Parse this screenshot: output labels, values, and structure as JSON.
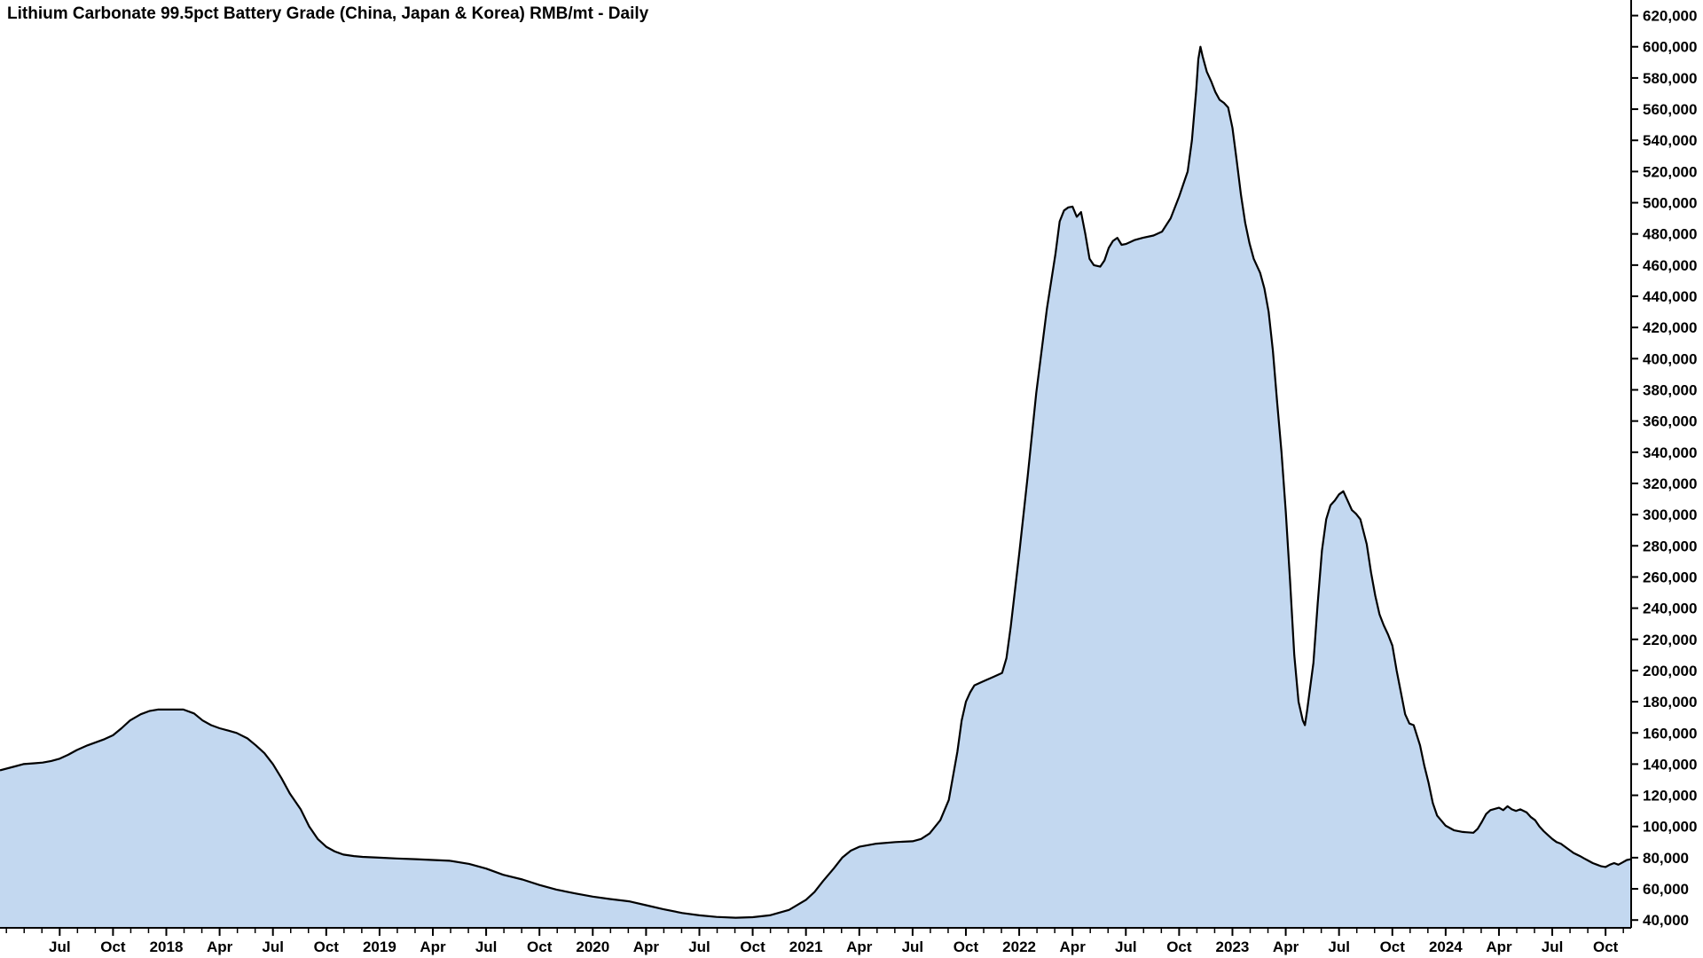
{
  "title": "Lithium Carbonate 99.5pct Battery Grade (China, Japan & Korea) RMB/mt - Daily",
  "chart_data": {
    "type": "area",
    "title": "Lithium Carbonate 99.5pct Battery Grade (China, Japan & Korea) RMB/mt - Daily",
    "xlabel": "",
    "ylabel": "",
    "unit": "RMB/mt",
    "frequency": "Daily",
    "grid": false,
    "legend_position": "none",
    "y_axis_side": "right",
    "x_domain": [
      2017.22,
      2024.87
    ],
    "y_domain": [
      35000,
      630000
    ],
    "y_ticks": [
      40000,
      60000,
      80000,
      100000,
      120000,
      140000,
      160000,
      180000,
      200000,
      220000,
      240000,
      260000,
      280000,
      300000,
      320000,
      340000,
      360000,
      380000,
      400000,
      420000,
      440000,
      460000,
      480000,
      500000,
      520000,
      540000,
      560000,
      580000,
      600000,
      620000
    ],
    "x_ticks": [
      {
        "t": 2017.5,
        "label": "Jul"
      },
      {
        "t": 2017.75,
        "label": "Oct"
      },
      {
        "t": 2018,
        "label": "2018"
      },
      {
        "t": 2018.25,
        "label": "Apr"
      },
      {
        "t": 2018.5,
        "label": "Jul"
      },
      {
        "t": 2018.75,
        "label": "Oct"
      },
      {
        "t": 2019,
        "label": "2019"
      },
      {
        "t": 2019.25,
        "label": "Apr"
      },
      {
        "t": 2019.5,
        "label": "Jul"
      },
      {
        "t": 2019.75,
        "label": "Oct"
      },
      {
        "t": 2020,
        "label": "2020"
      },
      {
        "t": 2020.25,
        "label": "Apr"
      },
      {
        "t": 2020.5,
        "label": "Jul"
      },
      {
        "t": 2020.75,
        "label": "Oct"
      },
      {
        "t": 2021,
        "label": "2021"
      },
      {
        "t": 2021.25,
        "label": "Apr"
      },
      {
        "t": 2021.5,
        "label": "Jul"
      },
      {
        "t": 2021.75,
        "label": "Oct"
      },
      {
        "t": 2022,
        "label": "2022"
      },
      {
        "t": 2022.25,
        "label": "Apr"
      },
      {
        "t": 2022.5,
        "label": "Jul"
      },
      {
        "t": 2022.75,
        "label": "Oct"
      },
      {
        "t": 2023,
        "label": "2023"
      },
      {
        "t": 2023.25,
        "label": "Apr"
      },
      {
        "t": 2023.5,
        "label": "Jul"
      },
      {
        "t": 2023.75,
        "label": "Oct"
      },
      {
        "t": 2024,
        "label": "2024"
      },
      {
        "t": 2024.25,
        "label": "Apr"
      },
      {
        "t": 2024.5,
        "label": "Jul"
      },
      {
        "t": 2024.75,
        "label": "Oct"
      }
    ],
    "colors": {
      "area_fill": "#c3d8f0",
      "line": "#000000",
      "axis": "#000000",
      "text": "#000000",
      "background": "#ffffff"
    },
    "series": [
      {
        "name": "Lithium Carbonate 99.5pct Battery Grade (China, Japan & Korea)",
        "points": [
          [
            2017.22,
            136000
          ],
          [
            2017.29,
            138500
          ],
          [
            2017.33,
            140000
          ],
          [
            2017.38,
            140500
          ],
          [
            2017.42,
            141000
          ],
          [
            2017.46,
            142000
          ],
          [
            2017.5,
            143500
          ],
          [
            2017.54,
            146000
          ],
          [
            2017.58,
            149000
          ],
          [
            2017.63,
            152000
          ],
          [
            2017.67,
            154000
          ],
          [
            2017.71,
            156000
          ],
          [
            2017.75,
            158500
          ],
          [
            2017.79,
            163000
          ],
          [
            2017.83,
            168000
          ],
          [
            2017.88,
            172000
          ],
          [
            2017.92,
            174000
          ],
          [
            2017.96,
            175000
          ],
          [
            2018.0,
            175000
          ],
          [
            2018.08,
            175000
          ],
          [
            2018.13,
            172500
          ],
          [
            2018.17,
            168000
          ],
          [
            2018.21,
            165000
          ],
          [
            2018.25,
            163000
          ],
          [
            2018.29,
            161500
          ],
          [
            2018.33,
            160000
          ],
          [
            2018.38,
            156500
          ],
          [
            2018.42,
            152000
          ],
          [
            2018.46,
            147000
          ],
          [
            2018.5,
            140000
          ],
          [
            2018.54,
            131000
          ],
          [
            2018.58,
            121000
          ],
          [
            2018.63,
            111000
          ],
          [
            2018.67,
            100000
          ],
          [
            2018.71,
            92000
          ],
          [
            2018.75,
            87000
          ],
          [
            2018.79,
            84000
          ],
          [
            2018.83,
            82000
          ],
          [
            2018.88,
            81000
          ],
          [
            2018.92,
            80500
          ],
          [
            2019.0,
            80000
          ],
          [
            2019.08,
            79500
          ],
          [
            2019.17,
            79000
          ],
          [
            2019.25,
            78500
          ],
          [
            2019.33,
            78000
          ],
          [
            2019.42,
            76000
          ],
          [
            2019.5,
            73000
          ],
          [
            2019.58,
            69000
          ],
          [
            2019.67,
            66000
          ],
          [
            2019.75,
            62500
          ],
          [
            2019.83,
            59500
          ],
          [
            2019.92,
            57000
          ],
          [
            2020.0,
            55000
          ],
          [
            2020.08,
            53500
          ],
          [
            2020.17,
            52000
          ],
          [
            2020.25,
            49500
          ],
          [
            2020.33,
            47000
          ],
          [
            2020.42,
            44500
          ],
          [
            2020.5,
            43000
          ],
          [
            2020.58,
            42000
          ],
          [
            2020.67,
            41500
          ],
          [
            2020.75,
            41800
          ],
          [
            2020.83,
            43000
          ],
          [
            2020.92,
            46500
          ],
          [
            2021.0,
            53000
          ],
          [
            2021.04,
            58000
          ],
          [
            2021.08,
            65000
          ],
          [
            2021.13,
            73000
          ],
          [
            2021.17,
            80000
          ],
          [
            2021.21,
            84500
          ],
          [
            2021.25,
            87000
          ],
          [
            2021.33,
            89000
          ],
          [
            2021.42,
            90000
          ],
          [
            2021.5,
            90500
          ],
          [
            2021.54,
            92000
          ],
          [
            2021.58,
            95500
          ],
          [
            2021.63,
            104000
          ],
          [
            2021.67,
            117000
          ],
          [
            2021.71,
            148000
          ],
          [
            2021.73,
            168000
          ],
          [
            2021.75,
            180000
          ],
          [
            2021.77,
            186000
          ],
          [
            2021.79,
            190500
          ],
          [
            2021.83,
            193000
          ],
          [
            2021.88,
            196000
          ],
          [
            2021.92,
            198500
          ],
          [
            2021.94,
            208000
          ],
          [
            2021.96,
            228000
          ],
          [
            2022.0,
            275000
          ],
          [
            2022.04,
            325000
          ],
          [
            2022.08,
            378000
          ],
          [
            2022.13,
            432000
          ],
          [
            2022.17,
            467000
          ],
          [
            2022.19,
            488000
          ],
          [
            2022.21,
            495000
          ],
          [
            2022.23,
            497000
          ],
          [
            2022.25,
            497500
          ],
          [
            2022.27,
            491000
          ],
          [
            2022.29,
            494000
          ],
          [
            2022.31,
            480000
          ],
          [
            2022.33,
            464000
          ],
          [
            2022.35,
            460000
          ],
          [
            2022.38,
            459000
          ],
          [
            2022.4,
            463000
          ],
          [
            2022.42,
            471000
          ],
          [
            2022.44,
            475500
          ],
          [
            2022.46,
            477500
          ],
          [
            2022.48,
            473000
          ],
          [
            2022.5,
            473500
          ],
          [
            2022.54,
            476000
          ],
          [
            2022.58,
            477500
          ],
          [
            2022.63,
            479000
          ],
          [
            2022.67,
            481500
          ],
          [
            2022.71,
            490000
          ],
          [
            2022.75,
            504000
          ],
          [
            2022.77,
            512000
          ],
          [
            2022.79,
            520000
          ],
          [
            2022.81,
            540000
          ],
          [
            2022.83,
            572000
          ],
          [
            2022.84,
            592000
          ],
          [
            2022.85,
            600000
          ],
          [
            2022.86,
            594000
          ],
          [
            2022.88,
            584000
          ],
          [
            2022.9,
            578000
          ],
          [
            2022.92,
            571000
          ],
          [
            2022.94,
            566000
          ],
          [
            2022.96,
            564000
          ],
          [
            2022.98,
            561000
          ],
          [
            2023.0,
            548000
          ],
          [
            2023.02,
            527000
          ],
          [
            2023.04,
            505000
          ],
          [
            2023.06,
            487000
          ],
          [
            2023.08,
            474000
          ],
          [
            2023.1,
            464000
          ],
          [
            2023.13,
            455000
          ],
          [
            2023.15,
            445000
          ],
          [
            2023.17,
            430000
          ],
          [
            2023.19,
            405000
          ],
          [
            2023.21,
            372000
          ],
          [
            2023.23,
            340000
          ],
          [
            2023.25,
            302000
          ],
          [
            2023.27,
            258000
          ],
          [
            2023.29,
            210000
          ],
          [
            2023.31,
            180000
          ],
          [
            2023.33,
            168000
          ],
          [
            2023.34,
            165000
          ],
          [
            2023.35,
            174000
          ],
          [
            2023.38,
            205000
          ],
          [
            2023.4,
            243000
          ],
          [
            2023.42,
            277000
          ],
          [
            2023.44,
            297000
          ],
          [
            2023.46,
            306000
          ],
          [
            2023.48,
            309000
          ],
          [
            2023.5,
            313000
          ],
          [
            2023.52,
            315000
          ],
          [
            2023.54,
            309000
          ],
          [
            2023.56,
            303000
          ],
          [
            2023.58,
            300500
          ],
          [
            2023.6,
            297000
          ],
          [
            2023.63,
            281000
          ],
          [
            2023.65,
            263000
          ],
          [
            2023.67,
            248000
          ],
          [
            2023.69,
            236000
          ],
          [
            2023.71,
            229000
          ],
          [
            2023.73,
            223000
          ],
          [
            2023.75,
            216000
          ],
          [
            2023.77,
            200000
          ],
          [
            2023.79,
            186000
          ],
          [
            2023.81,
            172000
          ],
          [
            2023.83,
            166000
          ],
          [
            2023.85,
            165000
          ],
          [
            2023.88,
            152000
          ],
          [
            2023.9,
            139000
          ],
          [
            2023.92,
            128000
          ],
          [
            2023.94,
            115000
          ],
          [
            2023.96,
            107000
          ],
          [
            2024.0,
            100500
          ],
          [
            2024.04,
            97500
          ],
          [
            2024.08,
            96500
          ],
          [
            2024.13,
            96000
          ],
          [
            2024.15,
            98500
          ],
          [
            2024.17,
            103000
          ],
          [
            2024.19,
            108000
          ],
          [
            2024.21,
            110500
          ],
          [
            2024.25,
            112000
          ],
          [
            2024.27,
            110500
          ],
          [
            2024.29,
            113000
          ],
          [
            2024.31,
            111000
          ],
          [
            2024.33,
            110000
          ],
          [
            2024.35,
            111000
          ],
          [
            2024.38,
            109000
          ],
          [
            2024.4,
            106000
          ],
          [
            2024.42,
            104000
          ],
          [
            2024.44,
            100000
          ],
          [
            2024.46,
            97000
          ],
          [
            2024.48,
            94500
          ],
          [
            2024.5,
            92000
          ],
          [
            2024.52,
            90000
          ],
          [
            2024.54,
            89000
          ],
          [
            2024.56,
            87000
          ],
          [
            2024.58,
            85000
          ],
          [
            2024.6,
            83000
          ],
          [
            2024.63,
            81000
          ],
          [
            2024.65,
            79500
          ],
          [
            2024.67,
            78000
          ],
          [
            2024.69,
            76500
          ],
          [
            2024.71,
            75500
          ],
          [
            2024.73,
            74500
          ],
          [
            2024.75,
            74000
          ],
          [
            2024.77,
            75500
          ],
          [
            2024.79,
            76500
          ],
          [
            2024.81,
            75500
          ],
          [
            2024.83,
            77000
          ],
          [
            2024.85,
            78500
          ],
          [
            2024.87,
            79000
          ]
        ]
      }
    ]
  }
}
